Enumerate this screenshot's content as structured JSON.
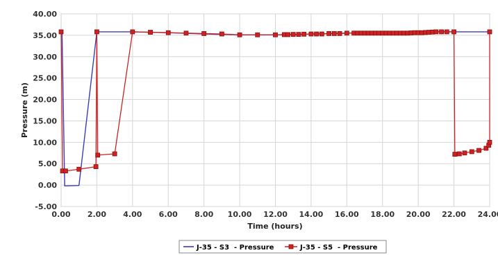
{
  "chart_data": {
    "type": "line",
    "title": "",
    "xlabel": "Time (hours)",
    "ylabel": "Pressure (m)",
    "xlim": [
      0,
      24
    ],
    "ylim": [
      -5,
      40
    ],
    "x_ticks": [
      "0.00",
      "2.00",
      "4.00",
      "6.00",
      "8.00",
      "10.00",
      "12.00",
      "14.00",
      "16.00",
      "18.00",
      "20.00",
      "22.00",
      "24.00"
    ],
    "y_ticks": [
      "-5.00",
      "0.00",
      "5.00",
      "10.00",
      "15.00",
      "20.00",
      "25.00",
      "30.00",
      "35.00",
      "40.00"
    ],
    "grid": true,
    "legend_position": "bottom-center",
    "series": [
      {
        "name": "J-35 - S3  - Pressure",
        "color": "#3b3bb8",
        "marker": "none",
        "points": [
          [
            0,
            35.8
          ],
          [
            0.05,
            35.8
          ],
          [
            0.2,
            -0.2
          ],
          [
            1.0,
            -0.1
          ],
          [
            2.0,
            35.8
          ],
          [
            4.0,
            35.8
          ],
          [
            6.0,
            35.6
          ],
          [
            8.0,
            35.3
          ],
          [
            10.0,
            35.1
          ],
          [
            12.0,
            35.1
          ],
          [
            14.0,
            35.3
          ],
          [
            16.0,
            35.5
          ],
          [
            18.0,
            35.5
          ],
          [
            20.0,
            35.6
          ],
          [
            21.0,
            35.8
          ],
          [
            22.0,
            35.8
          ],
          [
            24.0,
            35.8
          ]
        ]
      },
      {
        "name": "J-35 - S5  - Pressure",
        "color": "#cc2222",
        "marker": "square",
        "points": [
          [
            0,
            35.8
          ],
          [
            0.08,
            3.3
          ],
          [
            0.25,
            3.3
          ],
          [
            1.0,
            3.7
          ],
          [
            1.95,
            4.3
          ],
          [
            2.0,
            35.8
          ],
          [
            2.05,
            7.0
          ],
          [
            3.0,
            7.3
          ],
          [
            4.0,
            35.8
          ],
          [
            5.0,
            35.7
          ],
          [
            6.0,
            35.6
          ],
          [
            7.0,
            35.5
          ],
          [
            8.0,
            35.4
          ],
          [
            9.0,
            35.3
          ],
          [
            10.0,
            35.1
          ],
          [
            11.0,
            35.1
          ],
          [
            12.0,
            35.1
          ],
          [
            12.5,
            35.15
          ],
          [
            12.7,
            35.15
          ],
          [
            13.0,
            35.2
          ],
          [
            13.3,
            35.2
          ],
          [
            13.6,
            35.25
          ],
          [
            14.0,
            35.3
          ],
          [
            14.3,
            35.3
          ],
          [
            14.6,
            35.3
          ],
          [
            15.0,
            35.4
          ],
          [
            15.3,
            35.4
          ],
          [
            15.6,
            35.4
          ],
          [
            16.0,
            35.5
          ],
          [
            16.4,
            35.5
          ],
          [
            16.6,
            35.5
          ],
          [
            16.8,
            35.5
          ],
          [
            17.0,
            35.5
          ],
          [
            17.2,
            35.5
          ],
          [
            17.4,
            35.5
          ],
          [
            17.6,
            35.5
          ],
          [
            17.8,
            35.5
          ],
          [
            18.0,
            35.5
          ],
          [
            18.2,
            35.5
          ],
          [
            18.4,
            35.5
          ],
          [
            18.6,
            35.5
          ],
          [
            18.8,
            35.5
          ],
          [
            19.0,
            35.5
          ],
          [
            19.2,
            35.5
          ],
          [
            19.4,
            35.5
          ],
          [
            19.6,
            35.55
          ],
          [
            19.8,
            35.6
          ],
          [
            20.0,
            35.6
          ],
          [
            20.2,
            35.6
          ],
          [
            20.4,
            35.65
          ],
          [
            20.6,
            35.7
          ],
          [
            20.8,
            35.75
          ],
          [
            21.0,
            35.8
          ],
          [
            21.3,
            35.8
          ],
          [
            21.6,
            35.8
          ],
          [
            22.0,
            35.8
          ],
          [
            22.05,
            7.2
          ],
          [
            22.3,
            7.3
          ],
          [
            22.6,
            7.5
          ],
          [
            23.0,
            7.8
          ],
          [
            23.4,
            8.1
          ],
          [
            23.8,
            8.6
          ],
          [
            23.95,
            9.3
          ],
          [
            24.0,
            10.0
          ],
          [
            24.0,
            35.8
          ]
        ]
      }
    ]
  }
}
